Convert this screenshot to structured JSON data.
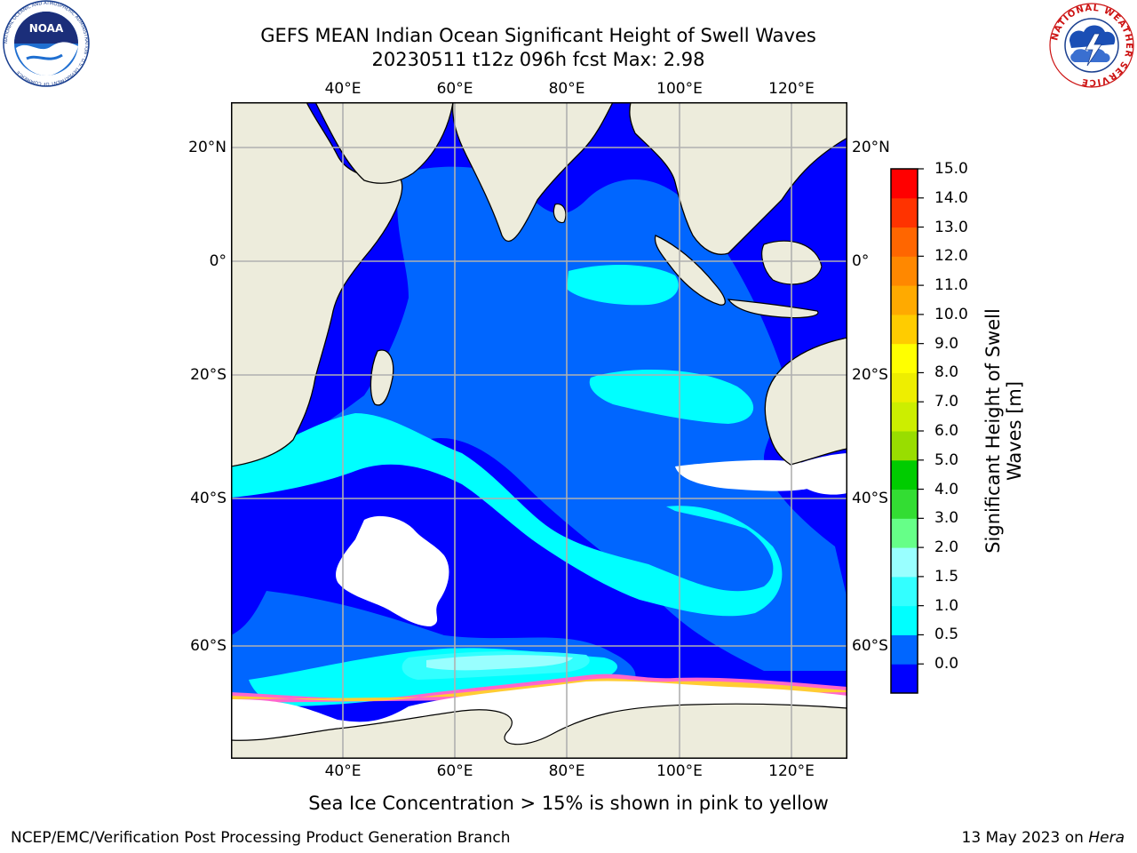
{
  "title": {
    "line1": "GEFS MEAN Indian Ocean Significant Height of Swell Waves",
    "line2": "20230511 t12z 096h fcst   Max: 2.98"
  },
  "logos": {
    "noaa": {
      "text": "NOAA",
      "ring": "NATIONAL OCEANIC AND ATMOSPHERIC ADMINISTRATION · U.S. DEPARTMENT OF COMMERCE"
    },
    "nws": {
      "ring": "NATIONAL WEATHER SERVICE"
    }
  },
  "map": {
    "lon_labels": [
      "40°E",
      "60°E",
      "80°E",
      "100°E",
      "120°E"
    ],
    "lat_labels_left": [
      "20°N",
      "0°",
      "20°S",
      "40°S",
      "60°S"
    ],
    "lat_labels_right": [
      "20°N",
      "0°",
      "20°S",
      "40°S",
      "60°S"
    ],
    "grid": true,
    "colors": {
      "land": "#edecdc",
      "ice_free_white": "#ffffff",
      "sea_ice_pink": "#ff66cc",
      "sea_ice_yellow": "#ffcc33"
    }
  },
  "colorbar": {
    "title_line1": "Significant Height of Swell",
    "title_line2": "Waves [m]",
    "labels": [
      "15.0",
      "14.0",
      "13.0",
      "12.0",
      "11.0",
      "10.0",
      "9.0",
      "8.0",
      "7.0",
      "6.0",
      "5.0",
      "4.0",
      "3.0",
      "2.0",
      "1.5",
      "1.0",
      "0.5",
      "0.0"
    ],
    "colors_bottom_to_top": [
      "#0000ff",
      "#0066ff",
      "#00ffff",
      "#33ffff",
      "#99ffff",
      "#66ff88",
      "#33dd33",
      "#00cc00",
      "#99dd00",
      "#ccee00",
      "#eeee00",
      "#ffff00",
      "#ffcc00",
      "#ffaa00",
      "#ff8800",
      "#ff6600",
      "#ff3300",
      "#ff0000"
    ]
  },
  "caption": "Sea Ice Concentration > 15% is shown in pink to yellow",
  "footer": {
    "left": "NCEP/EMC/Verification Post Processing Product Generation Branch",
    "right_date": "13 May 2023 on ",
    "right_machine": "Hera"
  }
}
